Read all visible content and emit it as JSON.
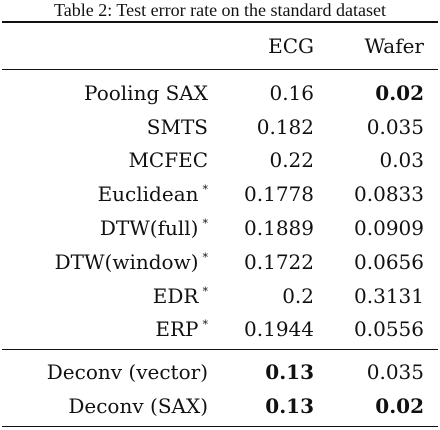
{
  "caption": "Table 2: Test error rate on the standard dataset",
  "header": {
    "name": "",
    "ecg": "ECG",
    "wafer": "Wafer"
  },
  "rows": [
    {
      "name": "Pooling SAX",
      "mark": "",
      "ecg": "0.16",
      "wafer": "0.02",
      "bold_ecg": false,
      "bold_wafer": true
    },
    {
      "name": "SMTS",
      "mark": "",
      "ecg": "0.182",
      "wafer": "0.035",
      "bold_ecg": false,
      "bold_wafer": false
    },
    {
      "name": "MCFEC",
      "mark": "",
      "ecg": "0.22",
      "wafer": "0.03",
      "bold_ecg": false,
      "bold_wafer": false
    },
    {
      "name": "Euclidean",
      "mark": "*",
      "ecg": "0.1778",
      "wafer": "0.0833",
      "bold_ecg": false,
      "bold_wafer": false
    },
    {
      "name": "DTW(full)",
      "mark": "*",
      "ecg": "0.1889",
      "wafer": "0.0909",
      "bold_ecg": false,
      "bold_wafer": false
    },
    {
      "name": "DTW(window)",
      "mark": "*",
      "ecg": "0.1722",
      "wafer": "0.0656",
      "bold_ecg": false,
      "bold_wafer": false
    },
    {
      "name": "EDR",
      "mark": "*",
      "ecg": "0.2",
      "wafer": "0.3131",
      "bold_ecg": false,
      "bold_wafer": false
    },
    {
      "name": "ERP",
      "mark": "*",
      "ecg": "0.1944",
      "wafer": "0.0556",
      "bold_ecg": false,
      "bold_wafer": false
    }
  ],
  "deconv_rows": [
    {
      "name": "Deconv (vector)",
      "mark": "",
      "ecg": "0.13",
      "wafer": "0.035",
      "bold_ecg": true,
      "bold_wafer": false
    },
    {
      "name": "Deconv (SAX)",
      "mark": "",
      "ecg": "0.13",
      "wafer": "0.02",
      "bold_ecg": true,
      "bold_wafer": true
    }
  ]
}
